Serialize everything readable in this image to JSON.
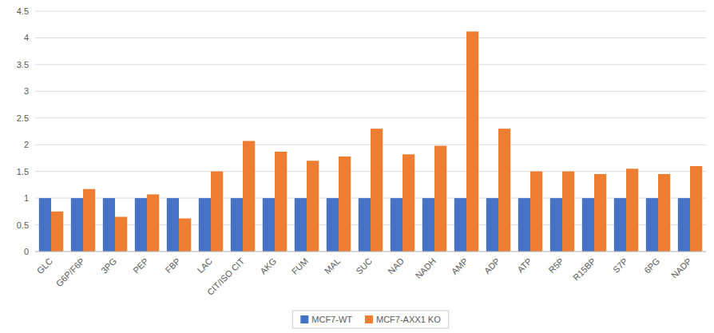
{
  "chart_data": {
    "type": "bar",
    "categories": [
      "GLC",
      "G6P/F6P",
      "3PG",
      "PEP",
      "FBP",
      "LAC",
      "CIT/ISO CIT",
      "AKG",
      "FUM",
      "MAL",
      "SUC",
      "NAD",
      "NADH",
      "AMP",
      "ADP",
      "ATP",
      "R5P",
      "R15BP",
      "S7P",
      "6PG",
      "NADP"
    ],
    "series": [
      {
        "name": "MCF7-WT",
        "color": "#4472C4",
        "values": [
          1.0,
          1.0,
          1.0,
          1.0,
          1.0,
          1.0,
          1.0,
          1.0,
          1.0,
          1.0,
          1.0,
          1.0,
          1.0,
          1.0,
          1.0,
          1.0,
          1.0,
          1.0,
          1.0,
          1.0,
          1.0
        ]
      },
      {
        "name": "MCF7-AXX1 KO",
        "color": "#ED7D31",
        "values": [
          0.75,
          1.17,
          0.65,
          1.07,
          0.62,
          1.5,
          2.07,
          1.87,
          1.7,
          1.78,
          2.3,
          1.82,
          1.98,
          4.12,
          2.3,
          1.5,
          1.5,
          1.45,
          1.55,
          1.45,
          1.6
        ]
      }
    ],
    "ylim": [
      0,
      4.5
    ],
    "yticks": [
      0,
      0.5,
      1,
      1.5,
      2,
      2.5,
      3,
      3.5,
      4,
      4.5
    ],
    "grid": true,
    "legend": "bottom"
  }
}
